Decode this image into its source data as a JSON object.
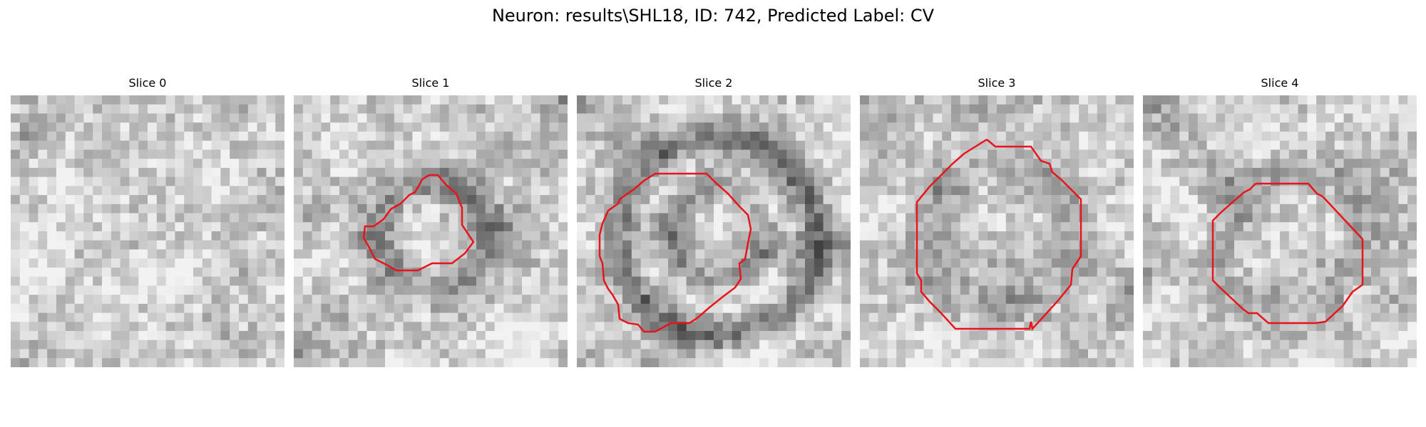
{
  "figure": {
    "title": "Neuron: results\\SHL18, ID: 742, Predicted Label: CV",
    "outline_color": "#e8141b",
    "colormap": "grayscale",
    "panels": [
      {
        "title": "Slice 0",
        "has_outline": false
      },
      {
        "title": "Slice 1",
        "has_outline": true
      },
      {
        "title": "Slice 2",
        "has_outline": true
      },
      {
        "title": "Slice 3",
        "has_outline": true
      },
      {
        "title": "Slice 4",
        "has_outline": true
      }
    ]
  }
}
